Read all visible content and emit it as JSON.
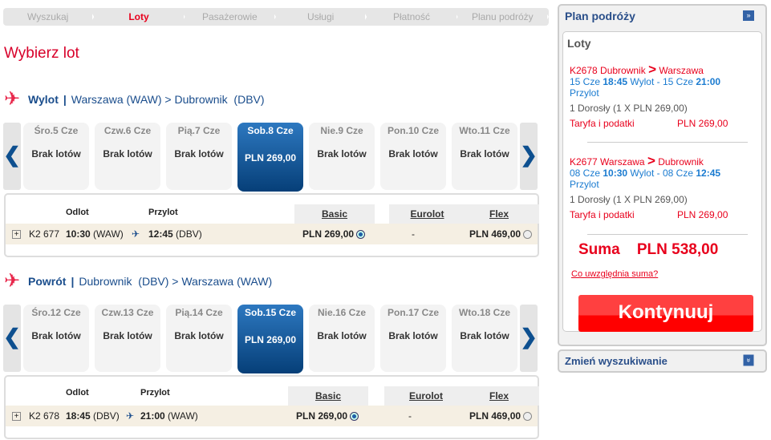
{
  "steps": [
    {
      "label": "Wyszukaj"
    },
    {
      "label": "Loty",
      "active": true
    },
    {
      "label": "Pasażerowie"
    },
    {
      "label": "Usługi"
    },
    {
      "label": "Płatność"
    },
    {
      "label": "Planu podróży"
    }
  ],
  "page_title": "Wybierz lot",
  "sections": [
    {
      "label": "Wylot",
      "sep": "|",
      "route": "Warszawa (WAW) > Dubrownik  (DBV)",
      "dates": [
        {
          "day": "Śro.5 Cze",
          "value": "Brak lotów"
        },
        {
          "day": "Czw.6 Cze",
          "value": "Brak lotów"
        },
        {
          "day": "Pią.7 Cze",
          "value": "Brak lotów"
        },
        {
          "day": "Sob.8 Cze",
          "value": "PLN 269,00",
          "selected": true
        },
        {
          "day": "Nie.9 Cze",
          "value": "Brak lotów"
        },
        {
          "day": "Pon.10 Cze",
          "value": "Brak lotów"
        },
        {
          "day": "Wto.11 Cze",
          "value": "Brak lotów"
        }
      ],
      "headers": {
        "departure": "Odlot",
        "arrival": "Przylot"
      },
      "fares": [
        "Basic",
        "Eurolot",
        "Flex"
      ],
      "flight": {
        "number": "K2 677",
        "dep_time": "10:30",
        "dep_code": "(WAW)",
        "arr_time": "12:45",
        "arr_code": "(DBV)",
        "basic": "PLN 269,00",
        "eurolot": "-",
        "flex": "PLN 469,00",
        "selected": "basic"
      }
    },
    {
      "label": "Powrót",
      "sep": "|",
      "route": "Dubrownik  (DBV) > Warszawa (WAW)",
      "dates": [
        {
          "day": "Śro.12 Cze",
          "value": "Brak lotów"
        },
        {
          "day": "Czw.13 Cze",
          "value": "Brak lotów"
        },
        {
          "day": "Pią.14 Cze",
          "value": "Brak lotów"
        },
        {
          "day": "Sob.15 Cze",
          "value": "PLN 269,00",
          "selected": true
        },
        {
          "day": "Nie.16 Cze",
          "value": "Brak lotów"
        },
        {
          "day": "Pon.17 Cze",
          "value": "Brak lotów"
        },
        {
          "day": "Wto.18 Cze",
          "value": "Brak lotów"
        }
      ],
      "headers": {
        "departure": "Odlot",
        "arrival": "Przylot"
      },
      "fares": [
        "Basic",
        "Eurolot",
        "Flex"
      ],
      "flight": {
        "number": "K2 678",
        "dep_time": "18:45",
        "dep_code": "(DBV)",
        "arr_time": "21:00",
        "arr_code": "(WAW)",
        "basic": "PLN 269,00",
        "eurolot": "-",
        "flex": "PLN 469,00",
        "selected": "basic"
      }
    }
  ],
  "sidebar": {
    "title": "Plan podróży",
    "toggle": "»",
    "flights_title": "Loty",
    "legs": [
      {
        "flight": "K2678 Dubrownik",
        "arrow": ">",
        "to": "Warszawa",
        "d1": "15 Cze",
        "t1": "18:45",
        "l1": "Wylot -",
        "d2": "15 Cze",
        "t2": "21:00",
        "l2": "Przylot",
        "pax": "1 Dorosły (1 X PLN 269,00)",
        "fare_label": "Taryfa i podatki",
        "fare": "PLN 269,00"
      },
      {
        "flight": "K2677 Warszawa",
        "arrow": ">",
        "to": "Dubrownik",
        "d1": "08 Cze",
        "t1": "10:30",
        "l1": "Wylot -",
        "d2": "08 Cze",
        "t2": "12:45",
        "l2": "Przylot",
        "pax": "1 Dorosły (1 X PLN 269,00)",
        "fare_label": "Taryfa i podatki",
        "fare": "PLN 269,00"
      }
    ],
    "sum_label": "Suma",
    "sum_value": "PLN 538,00",
    "sum_link": "Co uwzględnia suma?",
    "continue": "Kontynuuj",
    "change_search": "Zmień wyszukiwanie",
    "change_toggle": "»"
  },
  "colors": {
    "accent": "#e8001c",
    "brand_blue": "#1a4d8c",
    "selected_date": "#0d4f8f"
  }
}
